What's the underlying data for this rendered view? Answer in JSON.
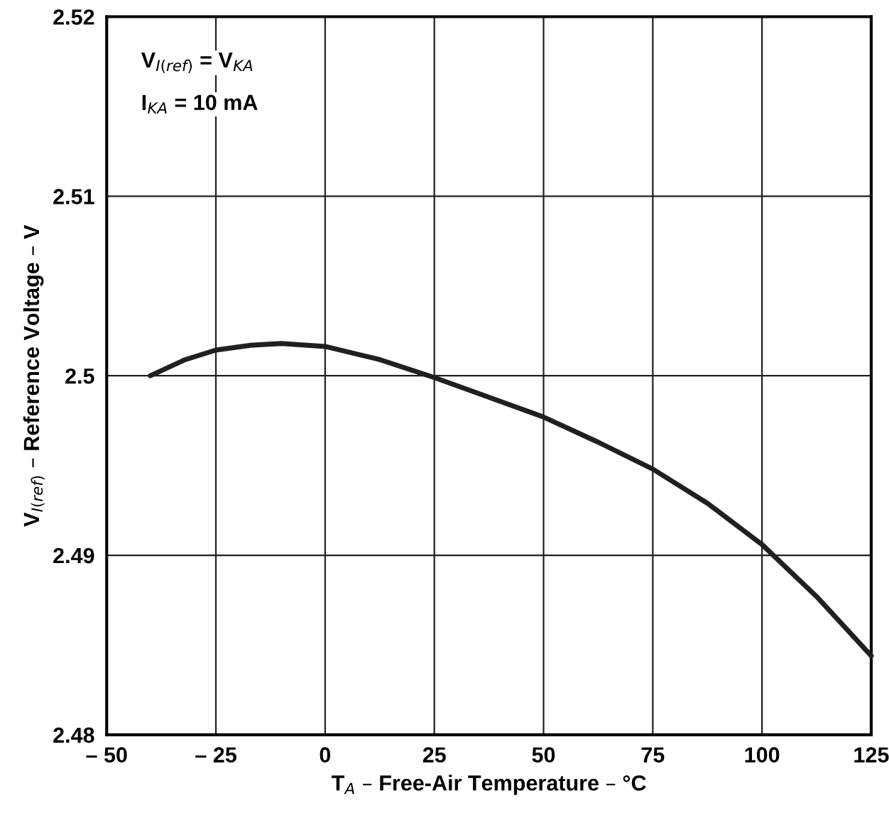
{
  "chart_data": {
    "type": "line",
    "xlabel": "T$_{A}$ – Free-Air Temperature – °C",
    "ylabel": "V$_{I(ref)}$ – Reference Voltage – V",
    "annotations": [
      "V$_{I(ref)}$ = V$_{KA}$",
      "I$_{KA}$ = 10 mA"
    ],
    "x": [
      -40,
      -32,
      -25,
      -17,
      -10,
      0,
      12.5,
      25,
      37.5,
      50,
      62.5,
      75,
      87.5,
      100,
      112.5,
      125
    ],
    "series": [
      {
        "color": "#231f20",
        "values": [
          2.5,
          2.5009,
          2.50143,
          2.5017,
          2.5018,
          2.50163,
          2.5009,
          2.4999,
          2.4988,
          2.4977,
          2.4963,
          2.4948,
          2.4929,
          2.4906,
          2.4877,
          2.4844
        ]
      }
    ],
    "xlim": [
      -50,
      125
    ],
    "ylim": [
      2.48,
      2.52
    ],
    "xticks": [
      {
        "value": -50,
        "label": "– 50"
      },
      {
        "value": -25,
        "label": "– 25"
      },
      0,
      25,
      50,
      75,
      100,
      125
    ],
    "yticks": [
      2.48,
      2.49,
      {
        "value": 2.5,
        "label": "2.5"
      },
      2.51,
      2.52
    ],
    "grid": true,
    "line_style": "solid",
    "marker": "none"
  }
}
